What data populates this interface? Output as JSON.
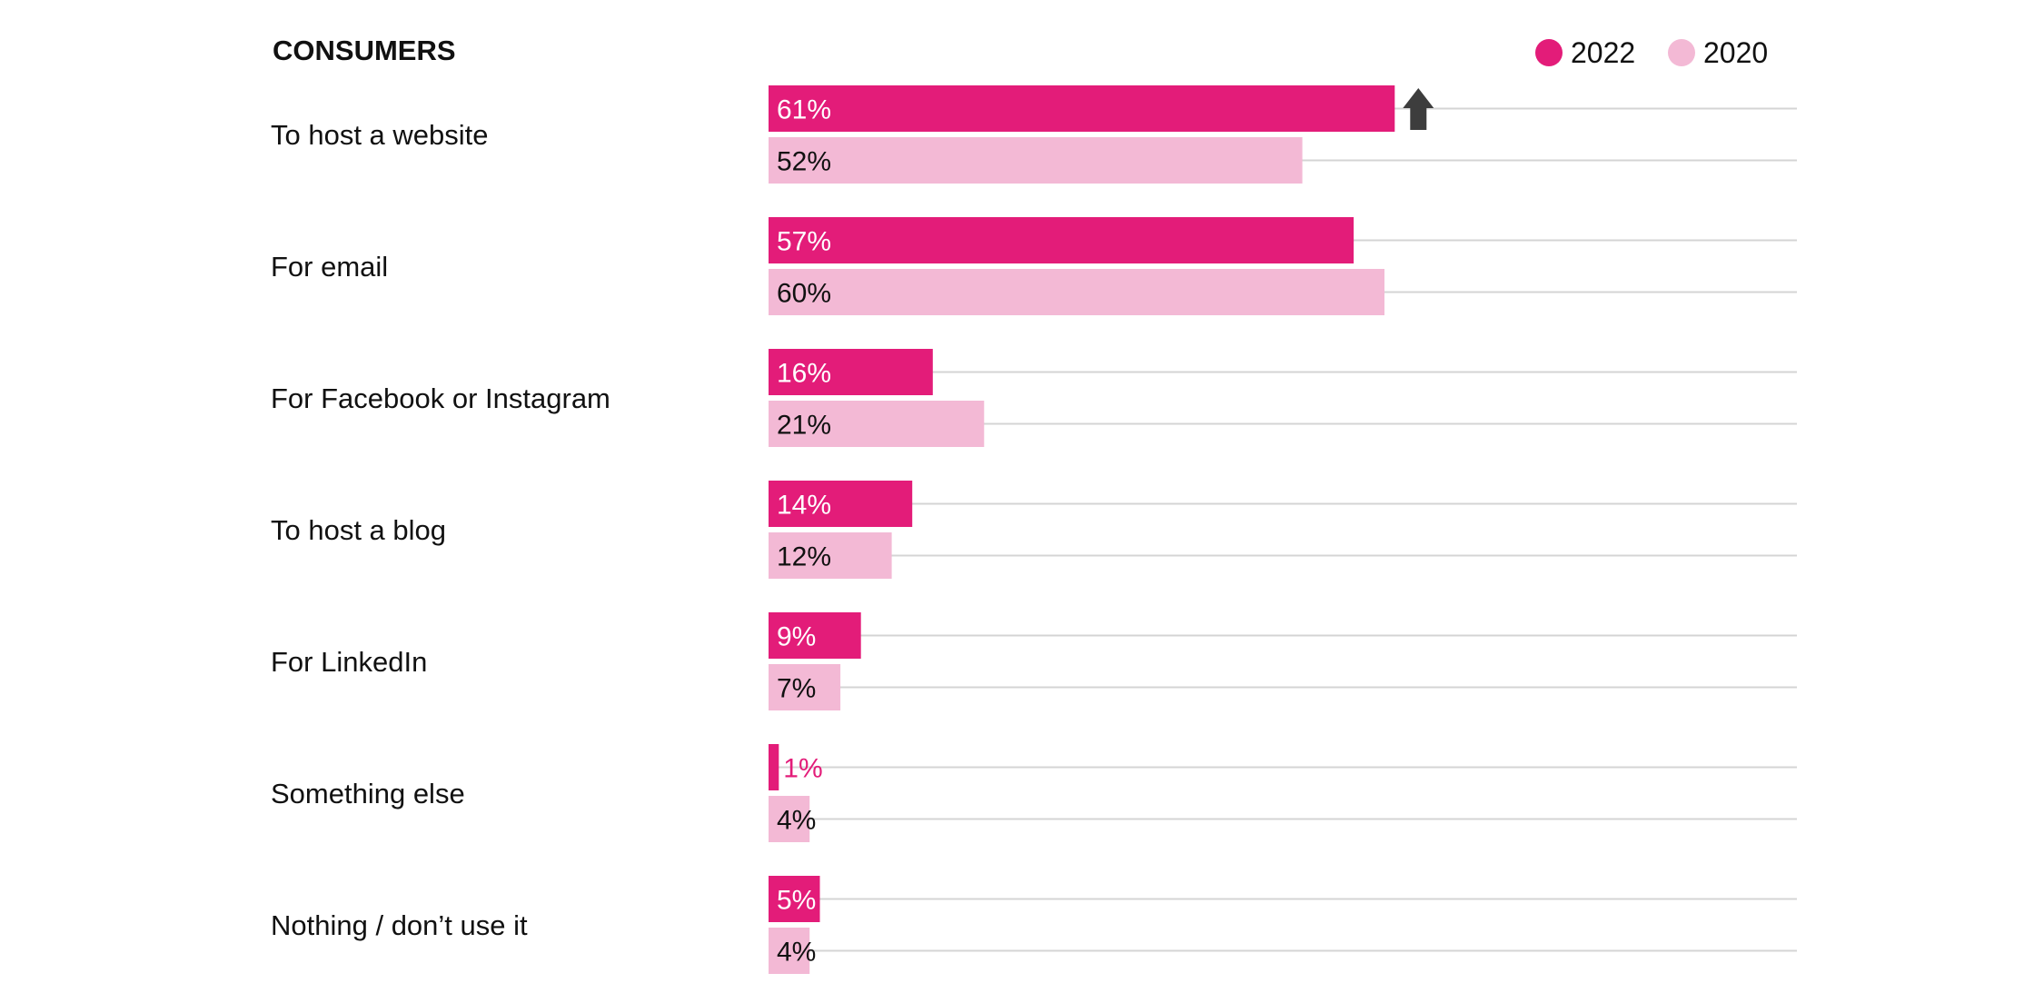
{
  "chart_data": {
    "type": "bar",
    "orientation": "horizontal",
    "title": "CONSUMERS",
    "xlabel": "",
    "ylabel": "",
    "xlim": [
      0,
      100
    ],
    "grid": true,
    "legend_position": "top-right",
    "categories": [
      "To host a website",
      "For email",
      "For Facebook or Instagram",
      "To host a blog",
      "For LinkedIn",
      "Something else",
      "Nothing / don’t use it"
    ],
    "series": [
      {
        "name": "2022",
        "color": "#e31c79",
        "label_color": "#ffffff",
        "values": [
          61,
          57,
          16,
          14,
          9,
          1,
          5
        ],
        "labels": [
          "61%",
          "57%",
          "16%",
          "14%",
          "9%",
          "1%",
          "5%"
        ]
      },
      {
        "name": "2020",
        "color": "#f3b9d5",
        "label_color": "#111111",
        "values": [
          52,
          60,
          21,
          12,
          7,
          4,
          4
        ],
        "labels": [
          "52%",
          "60%",
          "21%",
          "12%",
          "7%",
          "4%",
          "4%"
        ]
      }
    ],
    "annotations": [
      {
        "type": "up-arrow",
        "category": "To host a website",
        "series": "2022",
        "color": "#3d3d3d"
      }
    ],
    "outside_label_color": "#e31c79",
    "grid_color": "#d4d4d4"
  }
}
